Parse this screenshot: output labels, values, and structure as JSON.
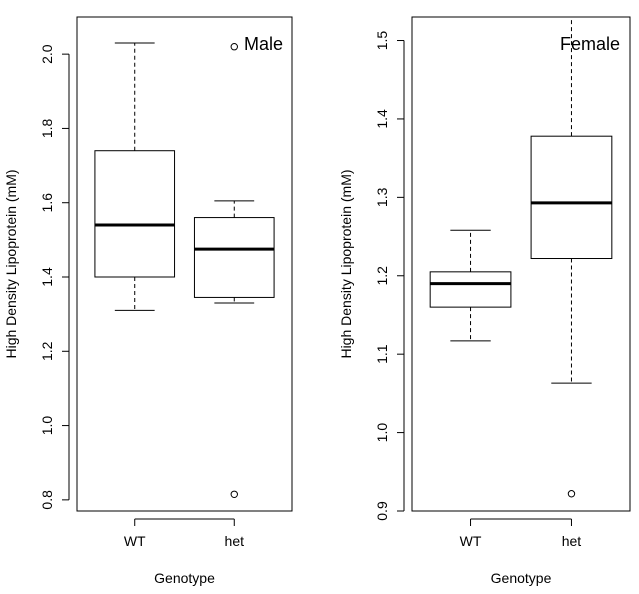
{
  "chart_data": [
    {
      "type": "box",
      "title": "Male",
      "xlabel": "Genotype",
      "ylabel": "High Density Lipoprotein (mM)",
      "ylim": [
        0.77,
        2.1
      ],
      "yticks": [
        "0.8",
        "1.0",
        "1.2",
        "1.4",
        "1.6",
        "1.8",
        "2.0"
      ],
      "categories": [
        "WT",
        "het"
      ],
      "boxes": [
        {
          "category": "WT",
          "whisker_low": 1.31,
          "q1": 1.4,
          "median": 1.54,
          "q3": 1.74,
          "whisker_high": 2.03,
          "outliers": []
        },
        {
          "category": "het",
          "whisker_low": 1.33,
          "q1": 1.345,
          "median": 1.475,
          "q3": 1.56,
          "whisker_high": 1.605,
          "outliers": [
            0.815,
            2.02
          ]
        }
      ]
    },
    {
      "type": "box",
      "title": "Female",
      "xlabel": "Genotype",
      "ylabel": "High Density Lipoprotein (mM)",
      "ylim": [
        0.9,
        1.53
      ],
      "yticks": [
        "0.9",
        "1.0",
        "1.1",
        "1.2",
        "1.3",
        "1.4",
        "1.5"
      ],
      "categories": [
        "WT",
        "het"
      ],
      "boxes": [
        {
          "category": "WT",
          "whisker_low": 1.117,
          "q1": 1.16,
          "median": 1.19,
          "q3": 1.205,
          "whisker_high": 1.258,
          "outliers": []
        },
        {
          "category": "het",
          "whisker_low": 1.063,
          "q1": 1.222,
          "median": 1.293,
          "q3": 1.378,
          "whisker_high": 1.53,
          "outliers": [
            0.922
          ]
        }
      ]
    }
  ]
}
